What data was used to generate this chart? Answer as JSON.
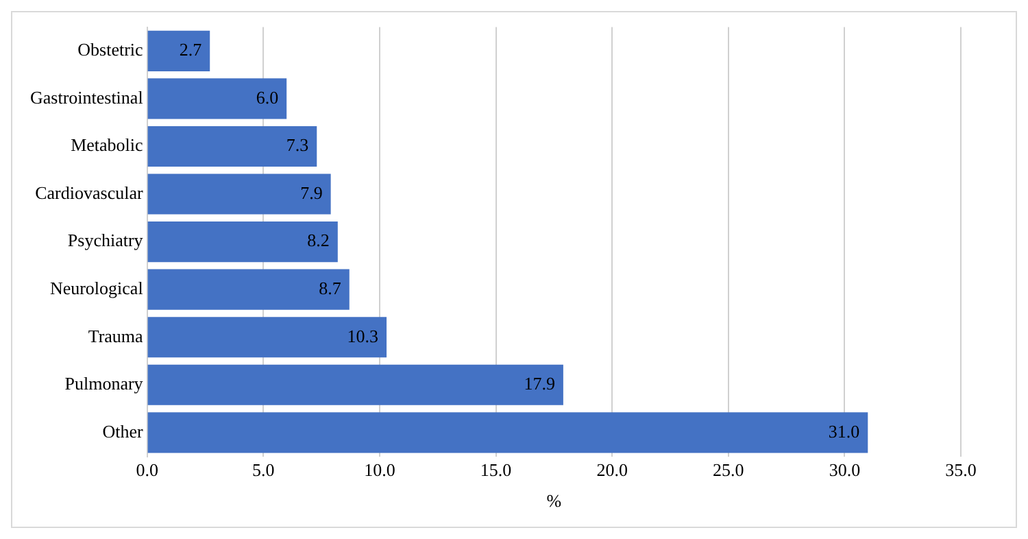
{
  "chart_data": {
    "type": "bar",
    "orientation": "horizontal",
    "xlabel": "%",
    "categories": [
      "Obstetric",
      "Gastrointestinal",
      "Metabolic",
      "Cardiovascular",
      "Psychiatry",
      "Neurological",
      "Trauma",
      "Pulmonary",
      "Other"
    ],
    "values": [
      2.7,
      6.0,
      7.3,
      7.9,
      8.2,
      8.7,
      10.3,
      17.9,
      31.0
    ],
    "value_labels": [
      "2.7",
      "6.0",
      "7.3",
      "7.9",
      "8.2",
      "8.7",
      "10.3",
      "17.9",
      "31.0"
    ],
    "color": "#4472c4",
    "xlim": [
      0,
      35
    ],
    "xticks": [
      {
        "value": 0,
        "label": "0.0"
      },
      {
        "value": 5,
        "label": "5.0"
      },
      {
        "value": 10,
        "label": "10.0"
      },
      {
        "value": 15,
        "label": "15.0"
      },
      {
        "value": 20,
        "label": "20.0"
      },
      {
        "value": 25,
        "label": "25.0"
      },
      {
        "value": 30,
        "label": "30.0"
      },
      {
        "value": 35,
        "label": "35.0"
      }
    ],
    "grid": "x"
  }
}
